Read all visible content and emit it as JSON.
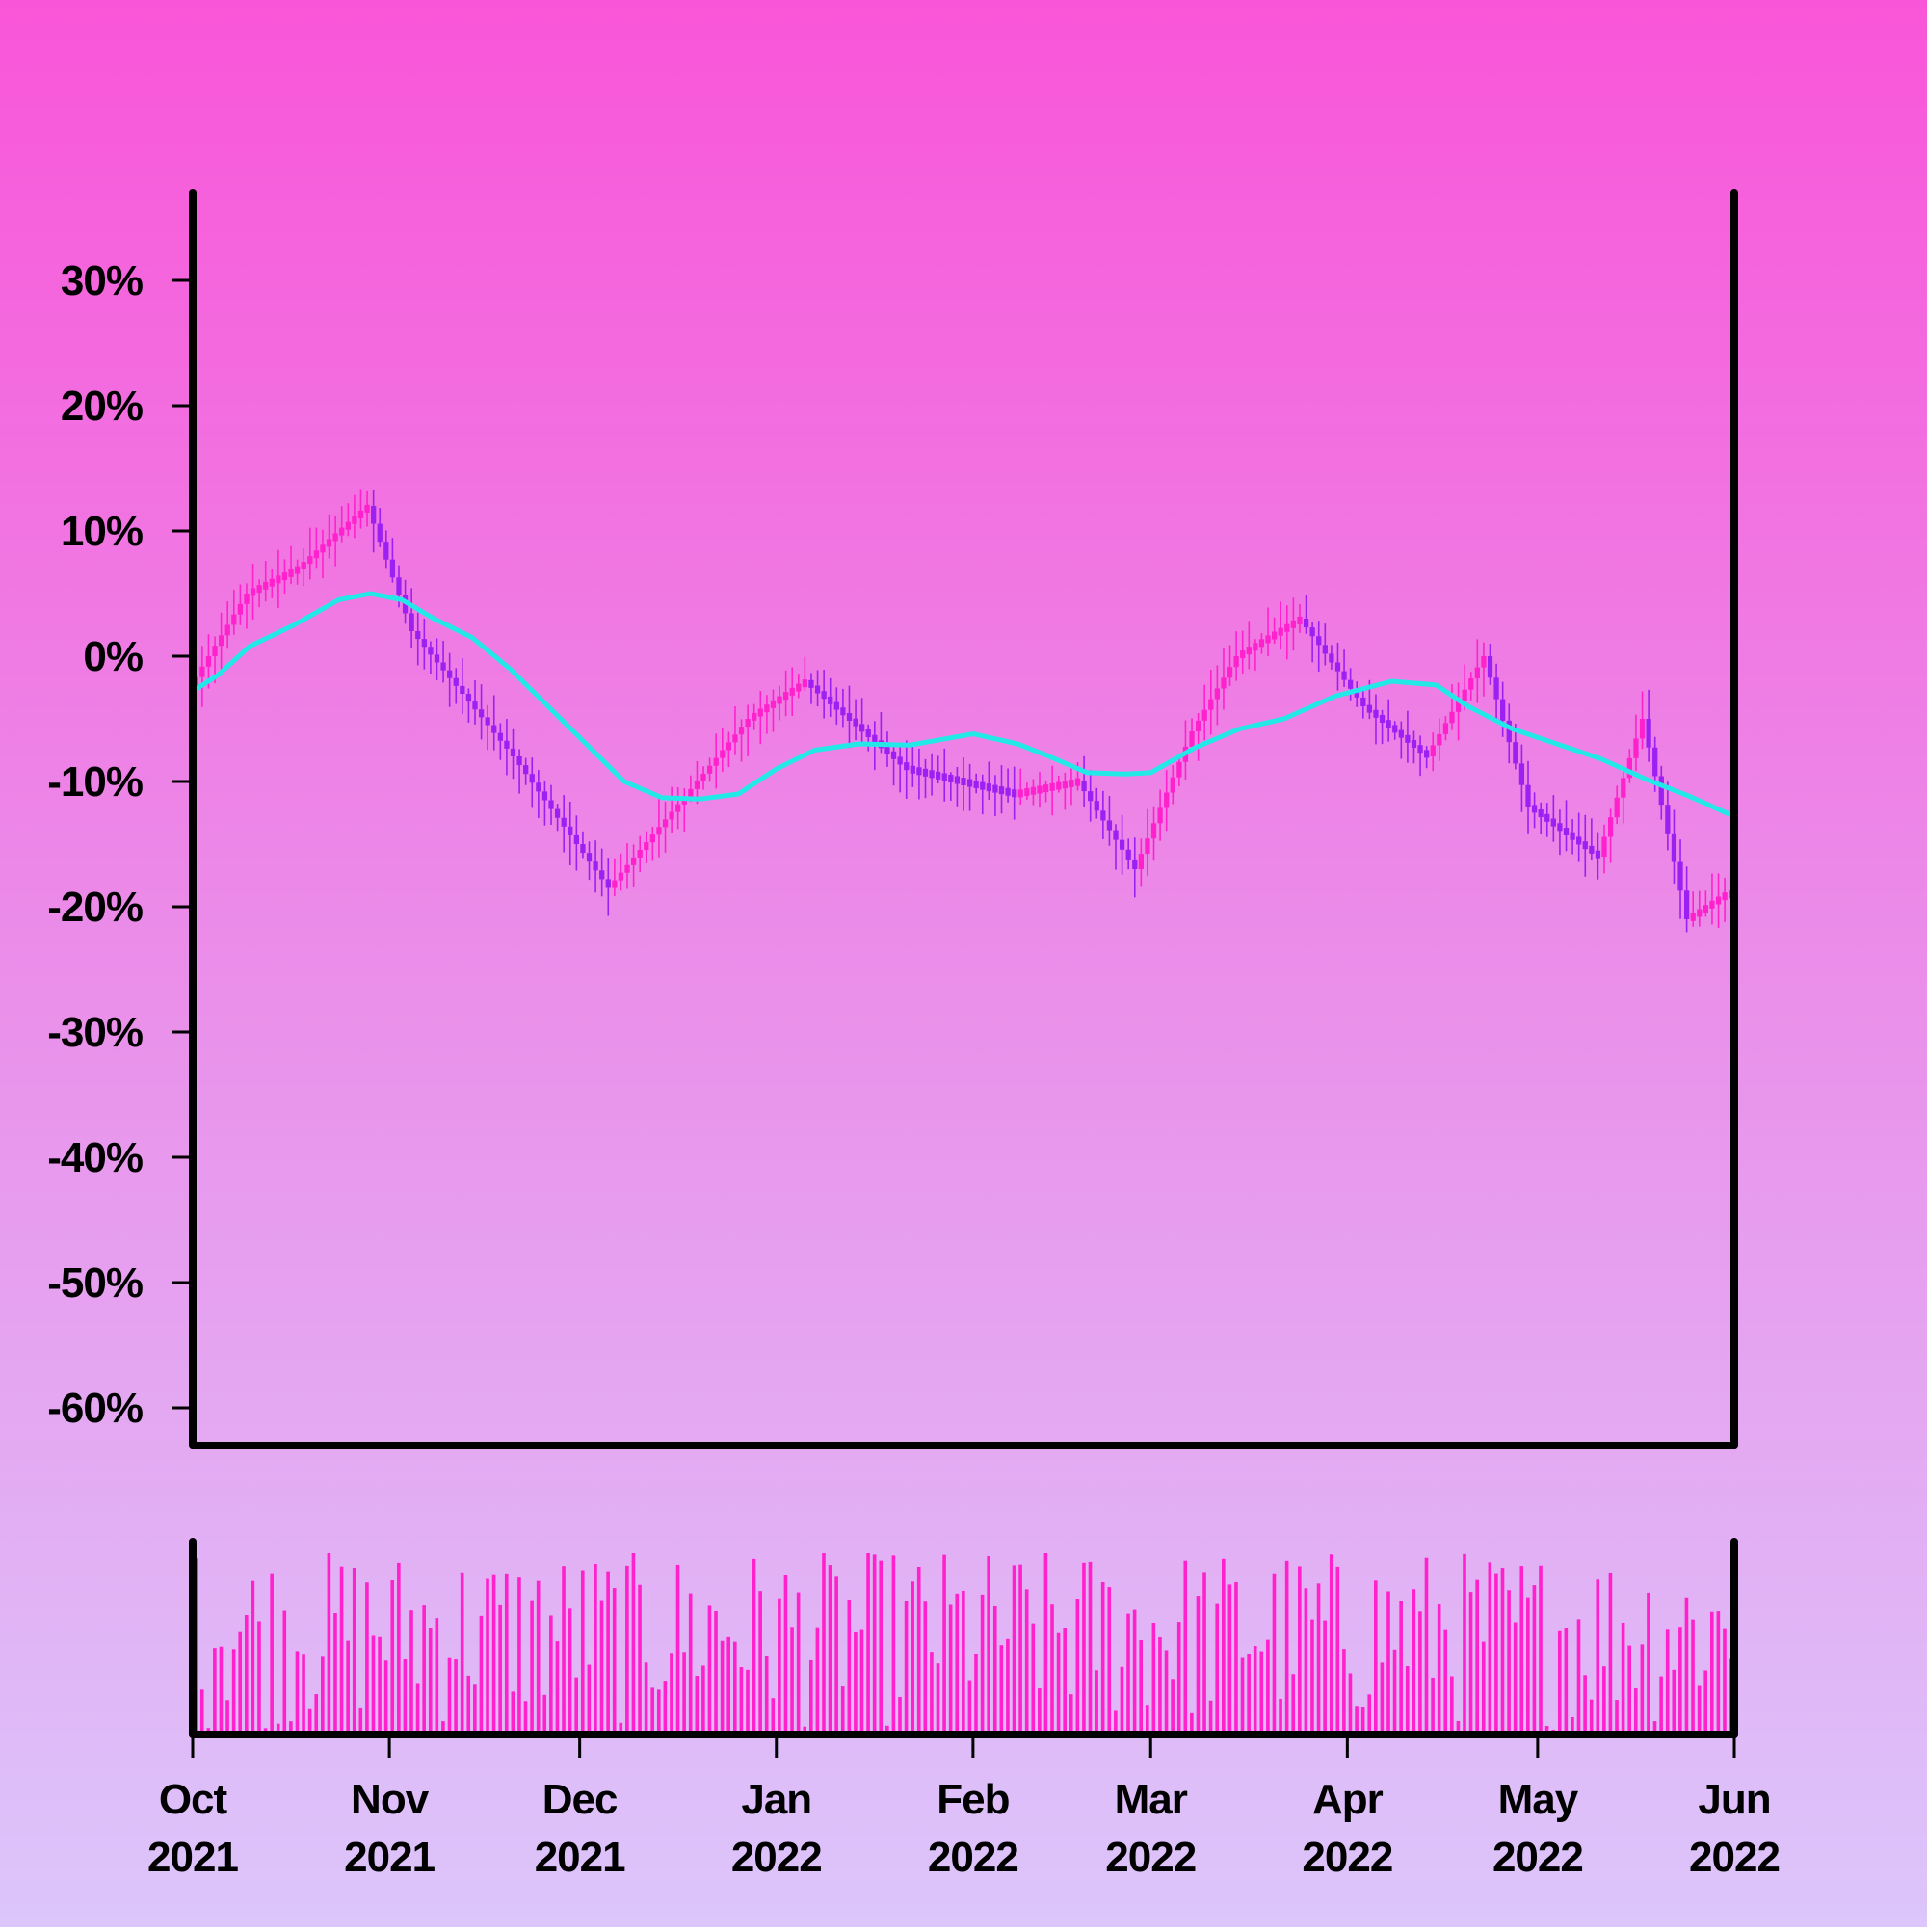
{
  "chart_data": {
    "type": "candlestick",
    "title": "",
    "xlabel": "",
    "ylabel": "",
    "y_axis": {
      "ticks": [
        30,
        20,
        10,
        0,
        -10,
        -20,
        -30,
        -40,
        -50,
        -60
      ],
      "tick_labels": [
        "30%",
        "20%",
        "10%",
        "0%",
        "-10%",
        "-20%",
        "-30%",
        "-40%",
        "-50%",
        "-60%"
      ],
      "ylim": [
        -63,
        37
      ]
    },
    "x_axis": {
      "start": "2021-10-01",
      "end": "2022-06-01",
      "ticks": [
        {
          "date": "2021-10-01",
          "line1": "Oct",
          "line2": "2021"
        },
        {
          "date": "2021-11-01",
          "line1": "Nov",
          "line2": "2021"
        },
        {
          "date": "2021-12-01",
          "line1": "Dec",
          "line2": "2021"
        },
        {
          "date": "2022-01-01",
          "line1": "Jan",
          "line2": "2022"
        },
        {
          "date": "2022-02-01",
          "line1": "Feb",
          "line2": "2022"
        },
        {
          "date": "2022-03-01",
          "line1": "Mar",
          "line2": "2022"
        },
        {
          "date": "2022-04-01",
          "line1": "Apr",
          "line2": "2022"
        },
        {
          "date": "2022-05-01",
          "line1": "May",
          "line2": "2022"
        },
        {
          "date": "2022-06-01",
          "line1": "Jun",
          "line2": "2022"
        }
      ]
    },
    "close_path_dates": [
      "2021-10-01",
      "2021-10-10",
      "2021-10-18",
      "2021-10-29",
      "2021-11-05",
      "2021-11-21",
      "2021-12-06",
      "2021-12-20",
      "2021-12-28",
      "2022-01-06",
      "2022-01-22",
      "2022-02-08",
      "2022-02-18",
      "2022-02-27",
      "2022-03-08",
      "2022-03-15",
      "2022-03-25",
      "2022-04-04",
      "2022-04-14",
      "2022-04-23",
      "2022-04-30",
      "2022-05-11",
      "2022-05-18",
      "2022-05-25",
      "2022-05-31"
    ],
    "close_path_values": [
      -2.5,
      5,
      7,
      12,
      2,
      -8,
      -18.5,
      -10,
      -5,
      -2,
      -9,
      -11,
      -10,
      -17,
      -6,
      0,
      3,
      -4,
      -8,
      0,
      -12,
      -16,
      -5,
      -21,
      -19
    ],
    "moving_average_dates": [
      "2021-10-01",
      "2021-10-05",
      "2021-10-10",
      "2021-10-17",
      "2021-10-24",
      "2021-10-29",
      "2021-11-03",
      "2021-11-08",
      "2021-11-14",
      "2021-11-20",
      "2021-11-26",
      "2021-12-02",
      "2021-12-08",
      "2021-12-14",
      "2021-12-20",
      "2021-12-26",
      "2022-01-01",
      "2022-01-07",
      "2022-01-14",
      "2022-01-22",
      "2022-02-01",
      "2022-02-08",
      "2022-02-13",
      "2022-02-19",
      "2022-02-25",
      "2022-03-01",
      "2022-03-08",
      "2022-03-15",
      "2022-03-22",
      "2022-03-30",
      "2022-04-08",
      "2022-04-15",
      "2022-04-20",
      "2022-04-27",
      "2022-05-04",
      "2022-05-11",
      "2022-05-18",
      "2022-05-25",
      "2022-06-01"
    ],
    "moving_average_values": [
      -2.8,
      -1.5,
      0.8,
      2.5,
      4.5,
      5,
      4.5,
      3,
      1.5,
      -1,
      -4,
      -7,
      -10,
      -11.3,
      -11.4,
      -11,
      -9,
      -7.5,
      -7,
      -7.1,
      -6.2,
      -7,
      -8,
      -9.3,
      -9.4,
      -9.3,
      -7.3,
      -5.8,
      -5,
      -3.2,
      -2,
      -2.3,
      -4,
      -5.8,
      -7,
      -8.2,
      -9.8,
      -11.2,
      -12.8
    ],
    "volume": {
      "bar_count": 243,
      "relative_scale": [
        0.0,
        1.0
      ]
    },
    "colors": {
      "up_candle": "#ff22cc",
      "down_candle": "#9b20f2",
      "moving_average": "#22e8e8",
      "volume_bars": "#ff22cc",
      "axes": "#000000",
      "background_top": "#f955d8",
      "background_bottom": "#dcc6fb"
    },
    "grid": false,
    "legend": "none"
  }
}
